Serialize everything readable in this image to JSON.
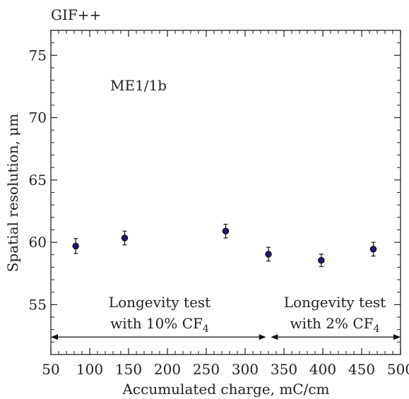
{
  "corner_label": "GIF++",
  "chart_data": {
    "type": "scatter",
    "title": "",
    "xlabel": "Accumulated charge, mC/cm",
    "ylabel": "Spatial resolution, μm",
    "xlim": [
      50,
      500
    ],
    "ylim": [
      51,
      77
    ],
    "x_ticks": [
      50,
      100,
      150,
      200,
      250,
      300,
      350,
      400,
      450,
      500
    ],
    "y_ticks": [
      55,
      60,
      65,
      70,
      75
    ],
    "grid": false,
    "points": [
      {
        "x": 82,
        "y": 59.7,
        "err": 0.6
      },
      {
        "x": 145,
        "y": 60.35,
        "err": 0.55
      },
      {
        "x": 275,
        "y": 60.9,
        "err": 0.55
      },
      {
        "x": 330,
        "y": 59.05,
        "err": 0.55
      },
      {
        "x": 398,
        "y": 58.55,
        "err": 0.5
      },
      {
        "x": 465,
        "y": 59.45,
        "err": 0.55
      }
    ],
    "marker_color": "#1a1a6e",
    "annotations": {
      "chamber": "ME1/1b",
      "test1_line1": "Longevity test",
      "test1_line2": "with 10% CF",
      "test1_sub": "4",
      "test2_line1": "Longevity test",
      "test2_line2": "with 2% CF",
      "test2_sub": "4"
    },
    "arrows": [
      {
        "from": 50,
        "to": 327,
        "y": 52.4
      },
      {
        "from": 333,
        "to": 500,
        "y": 52.4
      }
    ]
  }
}
